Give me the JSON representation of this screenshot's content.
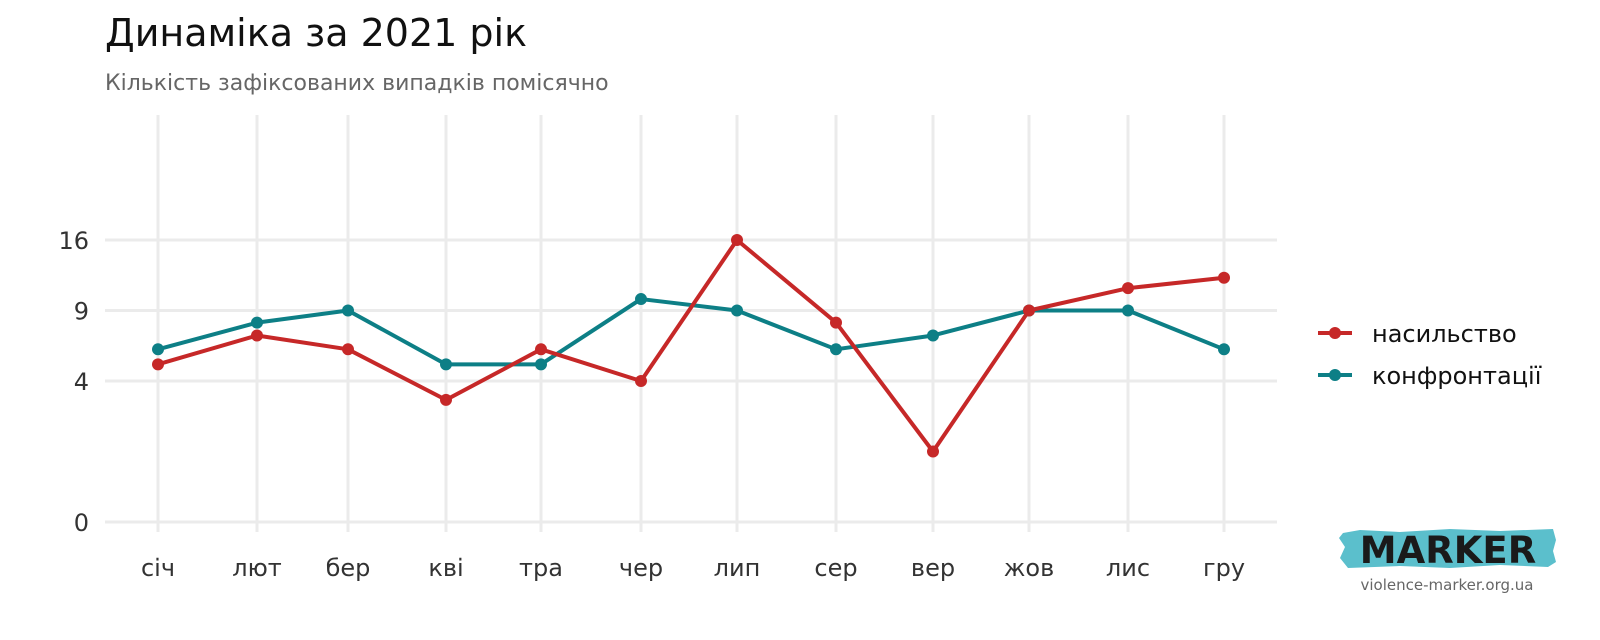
{
  "header": {
    "title": "Динаміка за 2021 рік",
    "subtitle": "Кількість зафіксованих випадків помісячно"
  },
  "chart_data": {
    "type": "line",
    "categories": [
      "січ",
      "лют",
      "бер",
      "кві",
      "тра",
      "чер",
      "лип",
      "сер",
      "вер",
      "жов",
      "лис",
      "гру"
    ],
    "y_scale": "sqrt",
    "ylim": [
      0,
      23
    ],
    "yticks": [
      0,
      4,
      9,
      16
    ],
    "grid": true,
    "legend_position": "right",
    "series": [
      {
        "name": "насильство",
        "color": "#c62828",
        "values": [
          5,
          7,
          6,
          3,
          6,
          4,
          16,
          8,
          1,
          9,
          11,
          12
        ]
      },
      {
        "name": "конфронтації",
        "color": "#0d7f86",
        "values": [
          6,
          8,
          9,
          5,
          5,
          10,
          9,
          6,
          7,
          9,
          9,
          6
        ]
      }
    ]
  },
  "branding": {
    "logo_text": "MARKER",
    "logo_color": "#5bbfcc",
    "site": "violence-marker.org.ua"
  }
}
